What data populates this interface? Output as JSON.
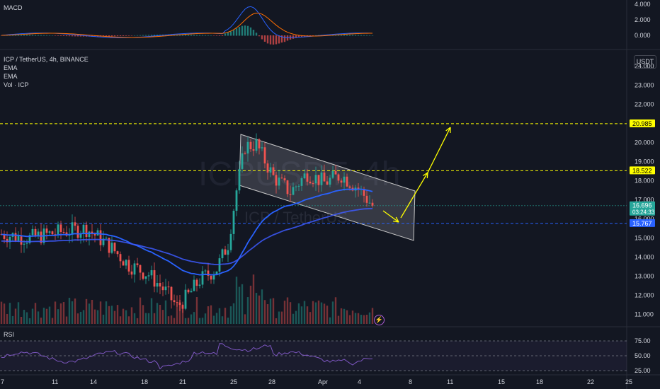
{
  "panes": {
    "macd": {
      "label": "MACD",
      "ticks": [
        "4.000",
        "2.000",
        "0.000"
      ]
    },
    "main": {
      "symbol": "ICP / TetherUS, 4h, BINANCE",
      "indicators": [
        "EMA",
        "EMA",
        "Vol · ICP"
      ],
      "watermark": "ICPUSDT, 4h",
      "watermark_sub": "ICP / TetherUS",
      "currency": "USDT",
      "ticks": [
        "24.000",
        "23.000",
        "22.000",
        "21.000",
        "20.000",
        "19.000",
        "18.000",
        "17.000",
        "16.000",
        "15.000",
        "14.000",
        "13.000",
        "12.000",
        "11.000"
      ]
    },
    "rsi": {
      "label": "RSI",
      "ticks": [
        "75.00",
        "50.00",
        "25.00"
      ]
    }
  },
  "price_labels": [
    {
      "text": "20.985",
      "bg": "#ffff00",
      "fg": "#000000"
    },
    {
      "text": "18.522",
      "bg": "#ffff00",
      "fg": "#000000"
    },
    {
      "text": "16.696",
      "sub": "03:24:33",
      "bg": "#26a69a",
      "fg": "#ffffff"
    },
    {
      "text": "15.767",
      "bg": "#2962ff",
      "fg": "#ffffff"
    }
  ],
  "x_axis": [
    "7",
    "11",
    "14",
    "18",
    "21",
    "25",
    "28",
    "Apr",
    "4",
    "8",
    "11",
    "15",
    "18",
    "22",
    "25"
  ],
  "colors": {
    "up": "#26a69a",
    "down": "#ef5350",
    "ema": "#2962ff",
    "arrow": "#ffff00",
    "rsi": "#7e57c2",
    "bg": "#131722"
  },
  "icon": "lightning-icon",
  "chart_data": {
    "type": "candlestick",
    "title": "ICP / TetherUS, 4h, BINANCE",
    "series": [
      {
        "name": "EMA",
        "values_note": "moving average lines"
      }
    ],
    "levels": [
      20.985,
      18.522,
      16.696,
      15.767
    ],
    "ylim": [
      10.8,
      24.2
    ]
  }
}
